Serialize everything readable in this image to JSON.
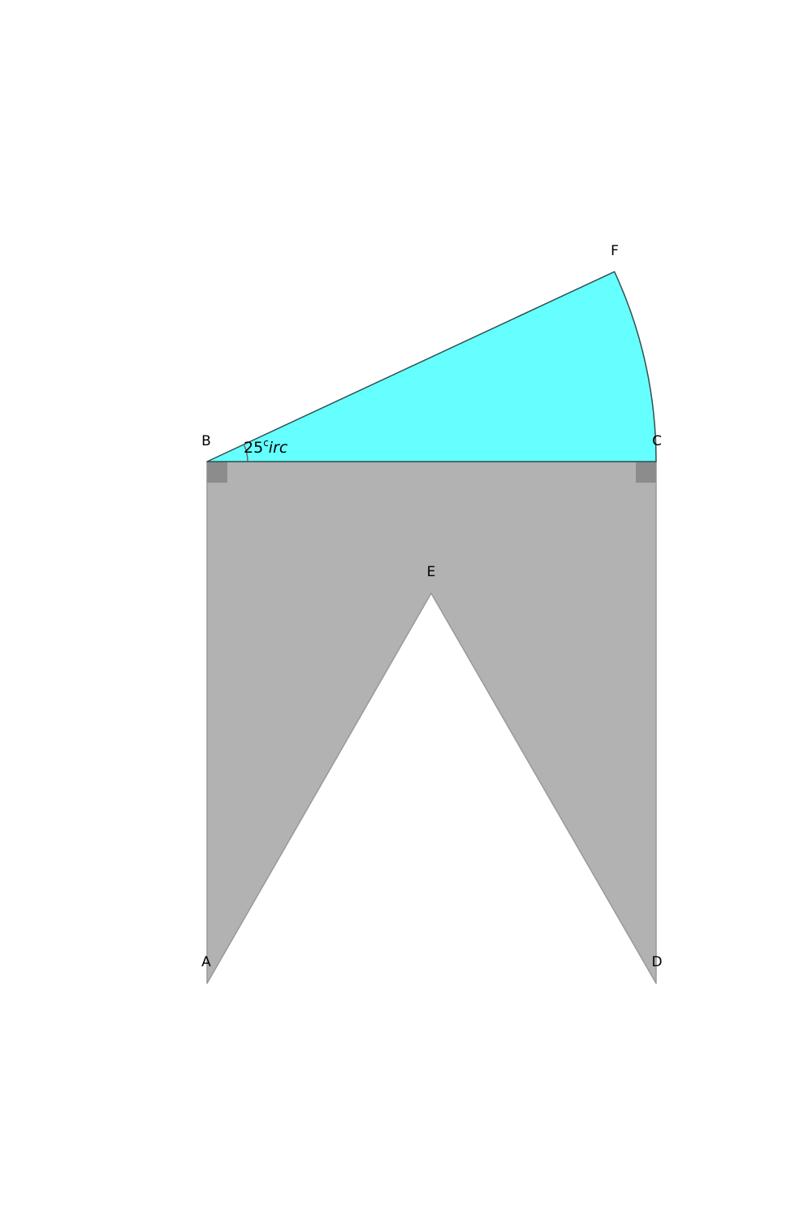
{
  "points": {
    "A": "A",
    "B": "B",
    "C": "C",
    "D": "D",
    "E": "E",
    "F": "F"
  },
  "angle": {
    "value": "25",
    "sup": "c",
    "rest": "irc"
  },
  "colors": {
    "sector_fill": "#66ffff",
    "sector_stroke": "#2f4f4f",
    "shape_fill": "#b2b2b2",
    "shape_stroke": "#999999",
    "right_angle_marker": "#8c8c8c"
  }
}
